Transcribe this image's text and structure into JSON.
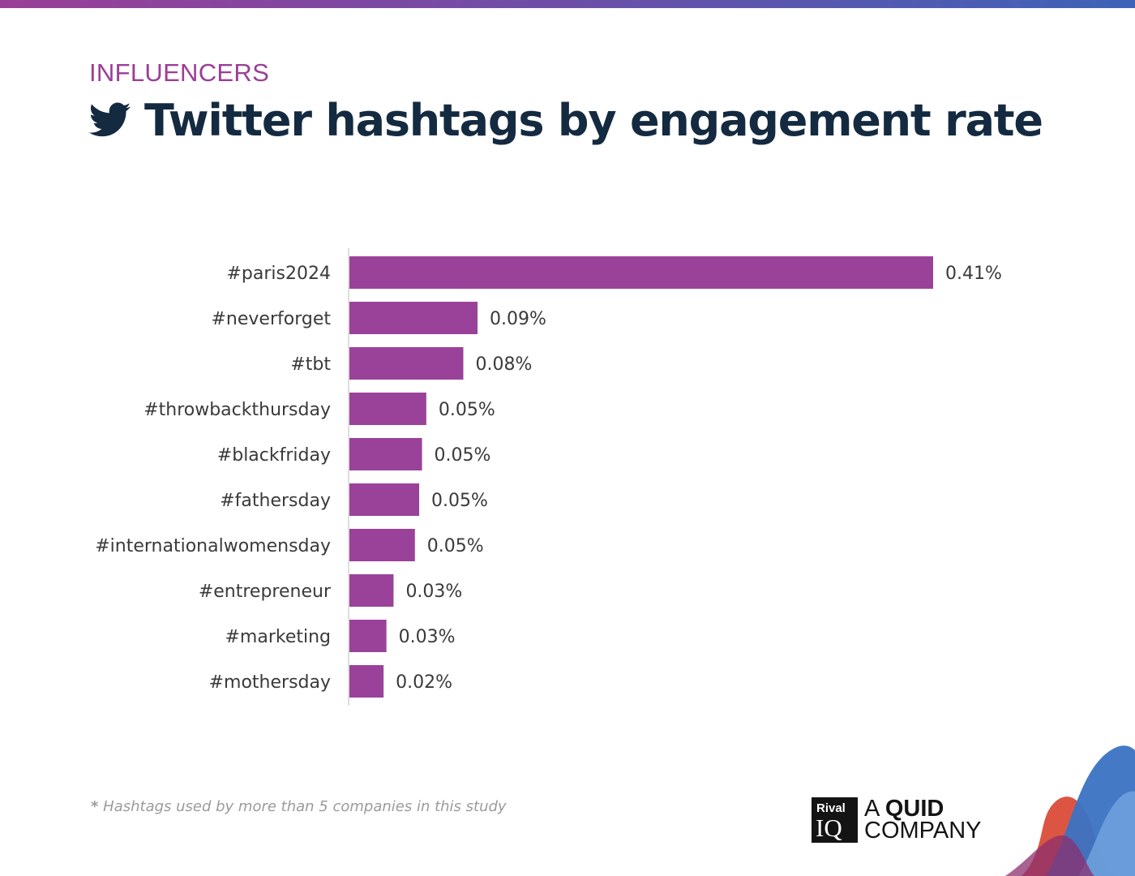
{
  "header": {
    "category": "INFLUENCERS",
    "title": "Twitter hashtags by engagement rate",
    "icon": "twitter-bird-icon",
    "accent_color": "#9a3f97",
    "title_color": "#142a40"
  },
  "chart_data": {
    "type": "bar",
    "orientation": "horizontal",
    "categories": [
      "#paris2024",
      "#neverforget",
      "#tbt",
      "#throwbackthursday",
      "#blackfriday",
      "#fathersday",
      "#internationalwomensday",
      "#entrepreneur",
      "#marketing",
      "#mothersday"
    ],
    "values": [
      0.41,
      0.09,
      0.08,
      0.054,
      0.051,
      0.049,
      0.046,
      0.031,
      0.026,
      0.024
    ],
    "value_labels": [
      "0.41%",
      "0.09%",
      "0.08%",
      "0.05%",
      "0.05%",
      "0.05%",
      "0.05%",
      "0.03%",
      "0.03%",
      "0.02%"
    ],
    "unit": "%",
    "bar_color": "#9a4299",
    "xlim": [
      0,
      0.41
    ],
    "grid": false,
    "legend": "none",
    "title": "Twitter hashtags by engagement rate",
    "xlabel": "",
    "ylabel": ""
  },
  "footnote": {
    "star": "*",
    "text": "Hashtags used by more than 5 companies in this study"
  },
  "brand": {
    "logo_top": "Rival",
    "logo_bottom": "IQ",
    "line1_a": "A",
    "line1_b": "QUID",
    "line2": "COMPANY"
  }
}
